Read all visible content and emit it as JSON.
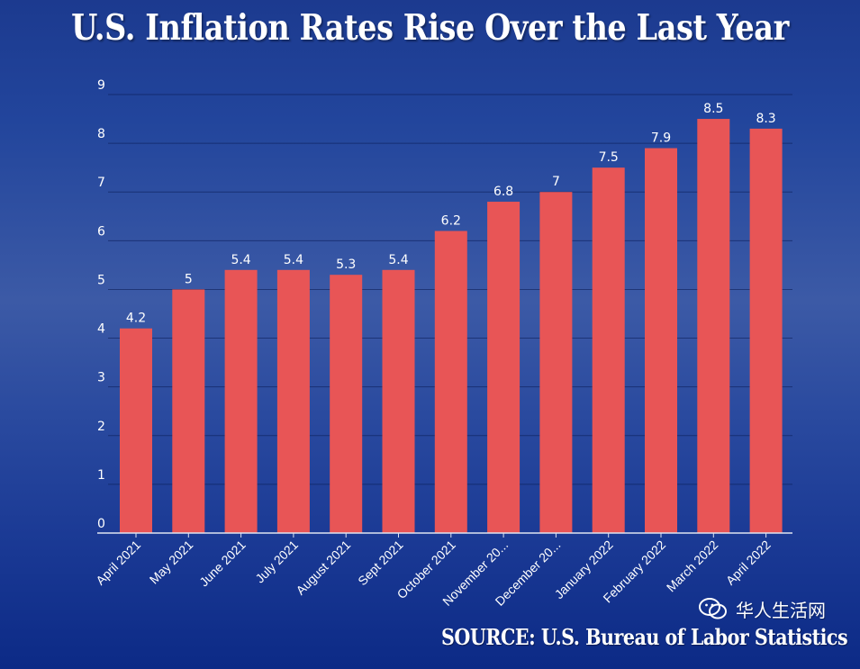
{
  "chart_data": {
    "type": "bar",
    "title": "U.S. Inflation Rates Rise Over the Last Year",
    "categories": [
      "April 2021",
      "May 2021",
      "June 2021",
      "July 2021",
      "August 2021",
      "Sept 2021",
      "October 2021",
      "November 20...",
      "December 20...",
      "January 2022",
      "February 2022",
      "March 2022",
      "April 2022"
    ],
    "values": [
      4.2,
      5,
      5.4,
      5.4,
      5.3,
      5.4,
      6.2,
      6.8,
      7,
      7.5,
      7.9,
      8.5,
      8.3
    ],
    "ylim": [
      0,
      9
    ],
    "yticks": [
      0,
      1,
      2,
      3,
      4,
      5,
      6,
      7,
      8,
      9
    ],
    "xlabel": "",
    "ylabel": "",
    "grid": true,
    "bar_color": "#e85556"
  },
  "source": "SOURCE: U.S. Bureau of Labor Statistics",
  "watermark": {
    "text": "华人生活网",
    "icon": "wechat-icon"
  },
  "colors": {
    "background_top": "#1c3a8f",
    "background_bottom": "#0c2a86",
    "bar": "#e85556",
    "text": "#ffffff"
  }
}
